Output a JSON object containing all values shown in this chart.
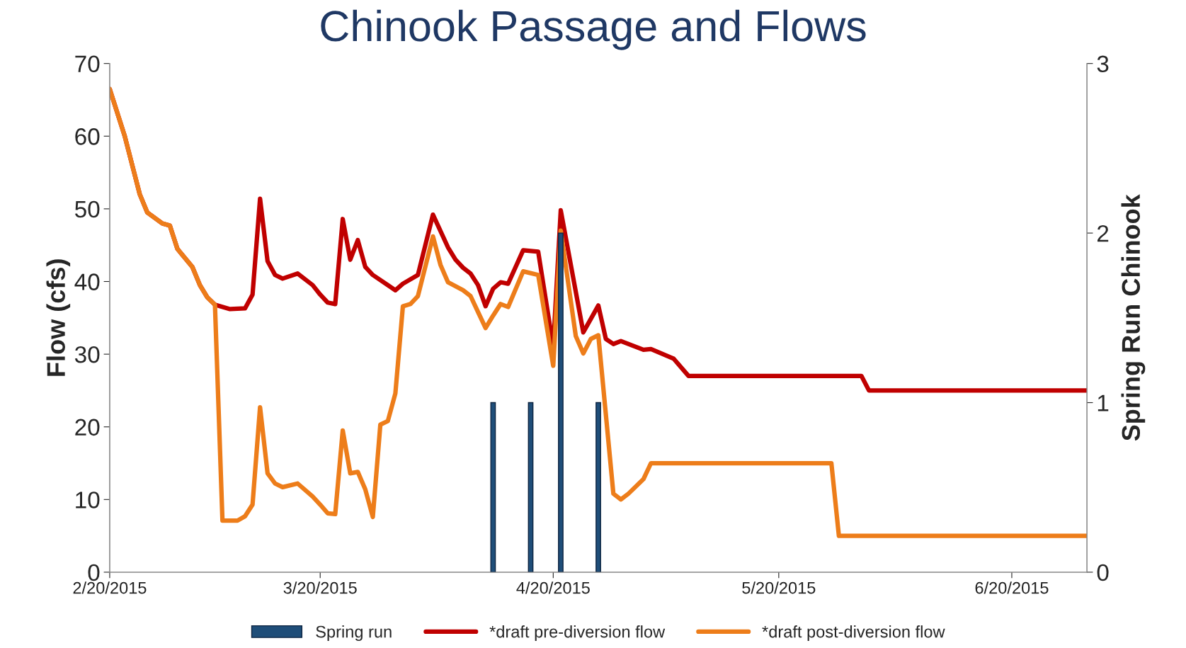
{
  "chart_data": {
    "type": "line",
    "title": "Chinook Passage and Flows",
    "ylabel": "Flow (cfs)",
    "y2label": "Spring Run Chinook",
    "xlim": [
      "2015-02-20",
      "2015-06-30"
    ],
    "xticks": [
      {
        "value": "2015-02-20",
        "label": "2/20/2015"
      },
      {
        "value": "2015-03-20",
        "label": "3/20/2015"
      },
      {
        "value": "2015-04-20",
        "label": "4/20/2015"
      },
      {
        "value": "2015-05-20",
        "label": "5/20/2015"
      },
      {
        "value": "2015-06-20",
        "label": "6/20/2015"
      }
    ],
    "ylim": [
      0,
      70
    ],
    "yticks": [
      0,
      10,
      20,
      30,
      40,
      50,
      60,
      70
    ],
    "y2lim": [
      0,
      3
    ],
    "y2ticks": [
      0,
      1,
      2,
      3
    ],
    "grid": false,
    "legend": "bottom",
    "series": [
      {
        "name": "Spring run",
        "type": "bar",
        "axis": "y2",
        "color": "#1f4e79",
        "x": [
          "2015-04-12",
          "2015-04-17",
          "2015-04-21",
          "2015-04-26"
        ],
        "values": [
          1,
          1,
          2,
          1
        ]
      },
      {
        "name": "*draft pre-diversion flow",
        "color": "#c00000",
        "x": [
          "2015-02-20",
          "2015-02-22",
          "2015-02-24",
          "2015-02-25",
          "2015-02-27",
          "2015-02-28",
          "2015-03-01",
          "2015-03-03",
          "2015-03-04",
          "2015-03-05",
          "2015-03-06",
          "2015-03-08",
          "2015-03-10",
          "2015-03-11",
          "2015-03-12",
          "2015-03-13",
          "2015-03-14",
          "2015-03-15",
          "2015-03-17",
          "2015-03-19",
          "2015-03-20",
          "2015-03-21",
          "2015-03-22",
          "2015-03-23",
          "2015-03-24",
          "2015-03-25",
          "2015-03-26",
          "2015-03-27",
          "2015-03-29",
          "2015-03-30",
          "2015-03-31",
          "2015-04-02",
          "2015-04-04",
          "2015-04-06",
          "2015-04-07",
          "2015-04-08",
          "2015-04-09",
          "2015-04-10",
          "2015-04-11",
          "2015-04-12",
          "2015-04-13",
          "2015-04-14",
          "2015-04-16",
          "2015-04-18",
          "2015-04-20",
          "2015-04-21",
          "2015-04-24",
          "2015-04-26",
          "2015-04-27",
          "2015-04-28",
          "2015-04-29",
          "2015-05-02",
          "2015-05-03",
          "2015-05-06",
          "2015-05-08",
          "2015-05-31",
          "2015-06-01",
          "2015-06-30"
        ],
        "values": [
          66.5,
          60,
          52,
          49.5,
          48,
          47.7,
          44.5,
          42,
          39.5,
          37.8,
          36.8,
          36.2,
          36.3,
          38.2,
          51.4,
          42.8,
          40.9,
          40.4,
          41.1,
          39.5,
          38.2,
          37.1,
          36.9,
          48.6,
          43,
          45.7,
          42,
          40.9,
          39.5,
          38.8,
          39.7,
          40.9,
          49.2,
          44.7,
          43,
          41.9,
          41.1,
          39.5,
          36.6,
          39,
          39.9,
          39.7,
          44.3,
          44.1,
          31,
          49.8,
          33,
          36.7,
          32.1,
          31.4,
          31.8,
          30.6,
          30.7,
          29.4,
          27,
          27,
          25,
          25
        ]
      },
      {
        "name": "*draft post-diversion flow",
        "color": "#ed7d1a",
        "x": [
          "2015-02-20",
          "2015-02-22",
          "2015-02-24",
          "2015-02-25",
          "2015-02-27",
          "2015-02-28",
          "2015-03-01",
          "2015-03-03",
          "2015-03-04",
          "2015-03-05",
          "2015-03-06",
          "2015-03-07",
          "2015-03-09",
          "2015-03-10",
          "2015-03-11",
          "2015-03-12",
          "2015-03-13",
          "2015-03-14",
          "2015-03-15",
          "2015-03-17",
          "2015-03-19",
          "2015-03-20",
          "2015-03-21",
          "2015-03-22",
          "2015-03-23",
          "2015-03-24",
          "2015-03-25",
          "2015-03-26",
          "2015-03-27",
          "2015-03-28",
          "2015-03-29",
          "2015-03-30",
          "2015-03-31",
          "2015-04-01",
          "2015-04-02",
          "2015-04-04",
          "2015-04-05",
          "2015-04-06",
          "2015-04-08",
          "2015-04-09",
          "2015-04-10",
          "2015-04-11",
          "2015-04-12",
          "2015-04-13",
          "2015-04-14",
          "2015-04-16",
          "2015-04-18",
          "2015-04-20",
          "2015-04-21",
          "2015-04-23",
          "2015-04-24",
          "2015-04-25",
          "2015-04-26",
          "2015-04-28",
          "2015-04-29",
          "2015-04-30",
          "2015-05-02",
          "2015-05-03",
          "2015-05-27",
          "2015-05-28",
          "2015-06-30"
        ],
        "values": [
          66.5,
          60,
          52,
          49.5,
          48,
          47.7,
          44.5,
          42,
          39.5,
          37.8,
          36.8,
          7.1,
          7.1,
          7.7,
          9.3,
          22.7,
          13.6,
          12.2,
          11.7,
          12.2,
          10.4,
          9.3,
          8.1,
          8,
          19.5,
          13.6,
          13.8,
          11.4,
          7.6,
          20.3,
          20.8,
          24.6,
          36.6,
          36.9,
          38,
          46.2,
          42.3,
          39.9,
          38.8,
          38,
          35.8,
          33.6,
          35.3,
          36.9,
          36.5,
          41.4,
          40.9,
          28.4,
          47,
          32.5,
          30.1,
          32.1,
          32.6,
          10.8,
          10,
          10.8,
          12.8,
          15,
          15,
          5,
          5
        ]
      }
    ]
  }
}
